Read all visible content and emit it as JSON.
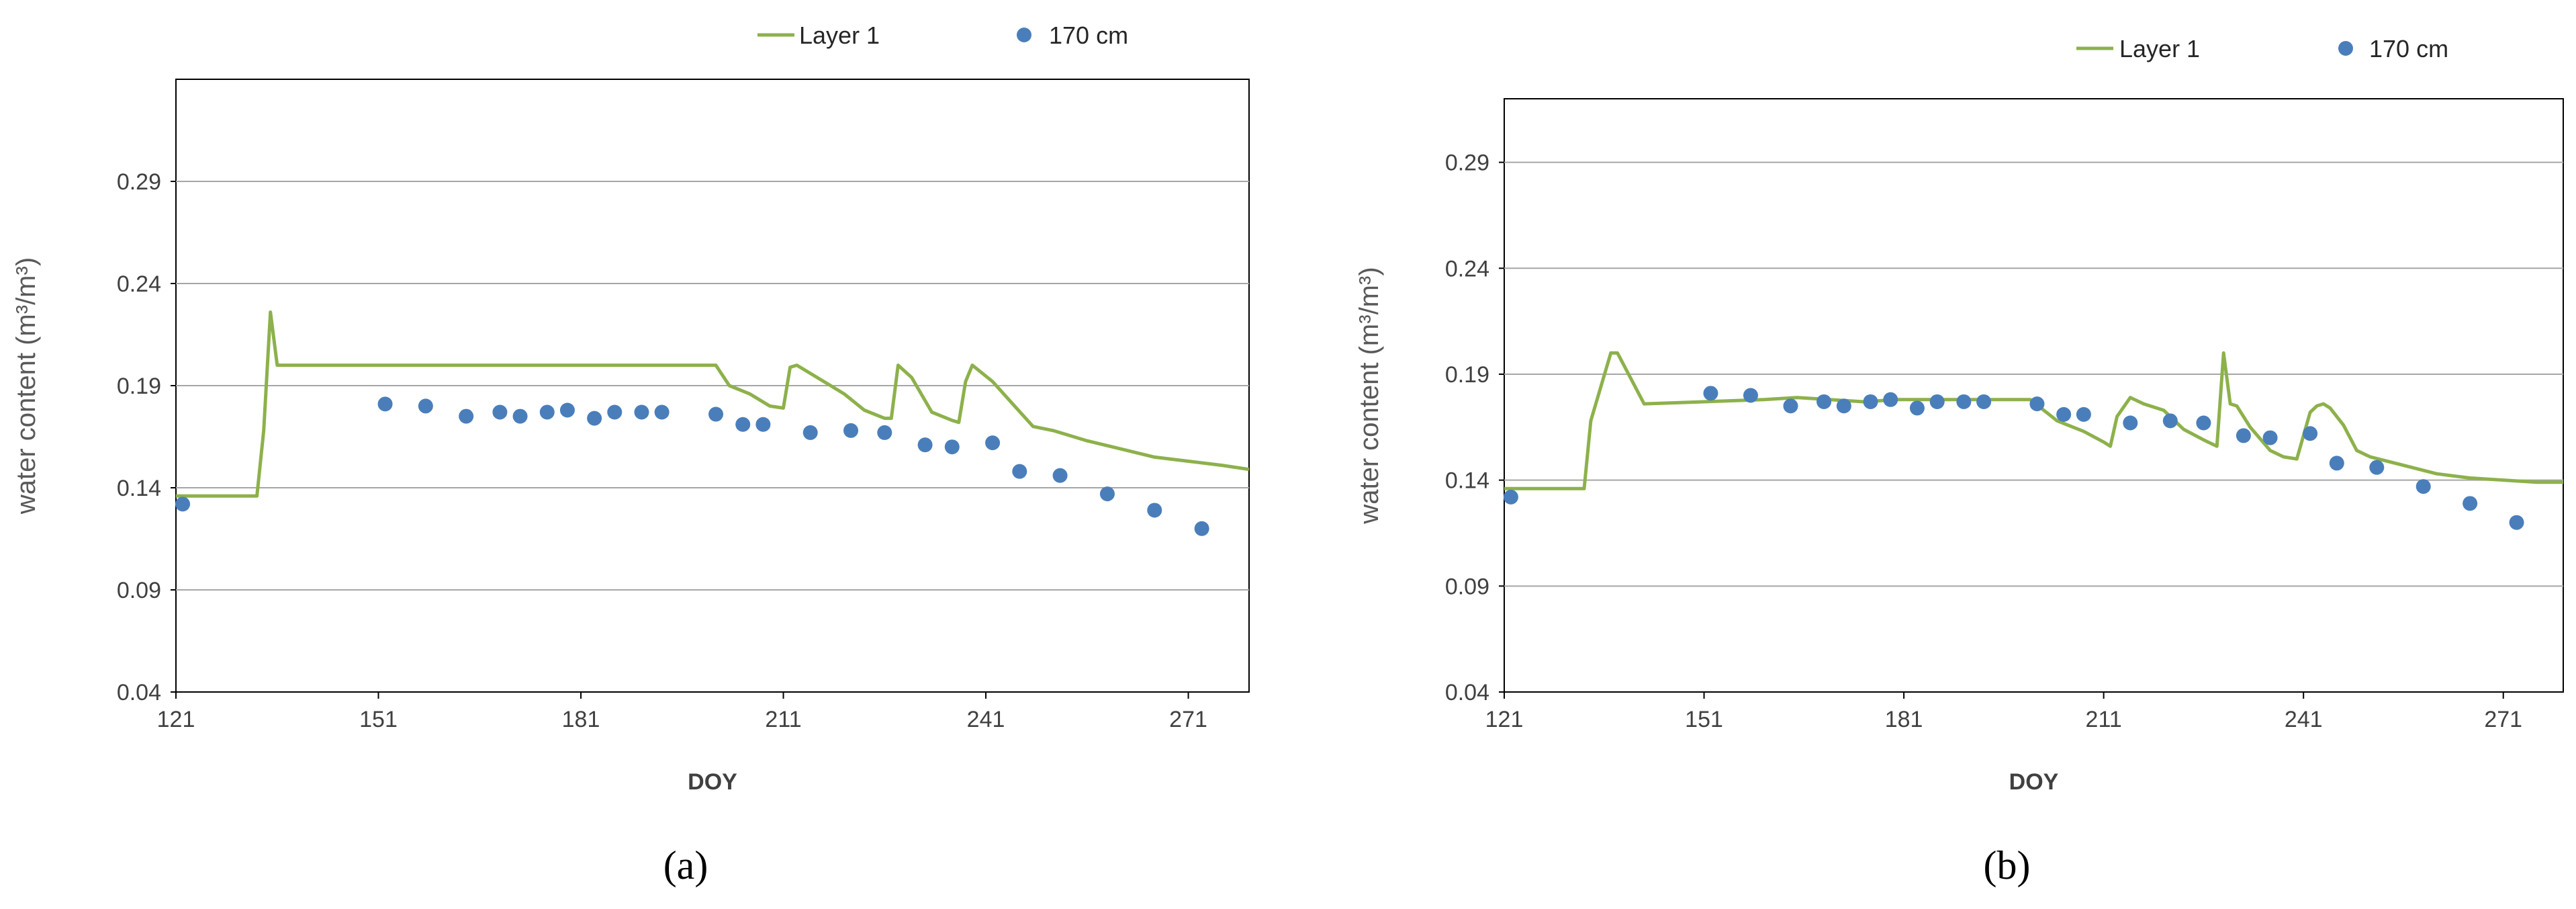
{
  "colors": {
    "layer": "#8db14b",
    "obs": "#4a7ebb",
    "grid": "#a6a6a6",
    "frame": "#000000"
  },
  "legend": {
    "line_label": "Layer 1",
    "marker_label": "170 cm"
  },
  "chart_data": [
    {
      "type": "line",
      "panel": "(a)",
      "xlabel": "DOY",
      "ylabel": "water content (m³/m³)",
      "xlim": [
        121,
        280
      ],
      "ylim": [
        0.04,
        0.34
      ],
      "xticks": [
        121,
        151,
        181,
        211,
        241,
        271
      ],
      "yticks": [
        0.04,
        0.09,
        0.14,
        0.19,
        0.24,
        0.29
      ],
      "grid": "horizontal",
      "legend_position": "top",
      "series": [
        {
          "name": "Layer 1",
          "style": "line",
          "x": [
            121,
            133,
            134,
            135,
            136,
            201,
            203,
            206,
            209,
            211,
            212,
            213,
            215,
            218,
            220,
            223,
            226,
            227,
            228,
            230,
            233,
            236,
            237,
            238,
            239,
            242,
            245,
            248,
            251,
            256,
            261,
            266,
            271,
            276,
            280
          ],
          "y": [
            0.136,
            0.136,
            0.168,
            0.226,
            0.2,
            0.2,
            0.19,
            0.186,
            0.18,
            0.179,
            0.199,
            0.2,
            0.196,
            0.19,
            0.186,
            0.178,
            0.174,
            0.174,
            0.2,
            0.194,
            0.177,
            0.173,
            0.172,
            0.192,
            0.2,
            0.192,
            0.181,
            0.17,
            0.168,
            0.163,
            0.159,
            0.155,
            0.153,
            0.151,
            0.149
          ]
        },
        {
          "name": "170 cm",
          "style": "markers",
          "x": [
            122,
            152,
            158,
            164,
            169,
            172,
            176,
            179,
            183,
            186,
            190,
            193,
            201,
            205,
            208,
            215,
            221,
            226,
            232,
            236,
            242,
            246,
            252,
            259,
            266,
            273
          ],
          "y": [
            0.132,
            0.181,
            0.18,
            0.175,
            0.177,
            0.175,
            0.177,
            0.178,
            0.174,
            0.177,
            0.177,
            0.177,
            0.176,
            0.171,
            0.171,
            0.167,
            0.168,
            0.167,
            0.161,
            0.16,
            0.162,
            0.148,
            0.146,
            0.137,
            0.129,
            0.12
          ]
        }
      ]
    },
    {
      "type": "line",
      "panel": "(b)",
      "xlabel": "DOY",
      "ylabel": "water content (m³/m³)",
      "xlim": [
        121,
        280
      ],
      "ylim": [
        0.04,
        0.32
      ],
      "xticks": [
        121,
        151,
        181,
        211,
        241,
        271
      ],
      "yticks": [
        0.04,
        0.09,
        0.14,
        0.19,
        0.24,
        0.29
      ],
      "grid": "horizontal",
      "legend_position": "top",
      "series": [
        {
          "name": "Layer 1",
          "style": "line",
          "x": [
            121,
            133,
            134,
            137,
            138,
            142,
            151,
            160,
            165,
            175,
            180,
            190,
            200,
            204,
            208,
            211,
            212,
            213,
            215,
            217,
            220,
            223,
            226,
            228,
            229,
            230,
            231,
            233,
            236,
            238,
            240,
            242,
            243,
            244,
            245,
            247,
            249,
            251,
            256,
            261,
            266,
            271,
            276,
            280
          ],
          "y": [
            0.136,
            0.136,
            0.168,
            0.2,
            0.2,
            0.176,
            0.177,
            0.178,
            0.179,
            0.177,
            0.178,
            0.178,
            0.178,
            0.168,
            0.163,
            0.158,
            0.156,
            0.17,
            0.179,
            0.176,
            0.173,
            0.164,
            0.159,
            0.156,
            0.2,
            0.176,
            0.175,
            0.165,
            0.154,
            0.151,
            0.15,
            0.172,
            0.175,
            0.176,
            0.174,
            0.166,
            0.154,
            0.151,
            0.147,
            0.143,
            0.141,
            0.14,
            0.139,
            0.139
          ]
        },
        {
          "name": "170 cm",
          "style": "markers",
          "x": [
            122,
            152,
            158,
            164,
            169,
            172,
            176,
            179,
            183,
            186,
            190,
            193,
            201,
            205,
            208,
            215,
            221,
            226,
            232,
            236,
            242,
            246,
            252,
            259,
            266,
            273
          ],
          "y": [
            0.132,
            0.181,
            0.18,
            0.175,
            0.177,
            0.175,
            0.177,
            0.178,
            0.174,
            0.177,
            0.177,
            0.177,
            0.176,
            0.171,
            0.171,
            0.167,
            0.168,
            0.167,
            0.161,
            0.16,
            0.162,
            0.148,
            0.146,
            0.137,
            0.129,
            0.12
          ]
        }
      ]
    }
  ]
}
